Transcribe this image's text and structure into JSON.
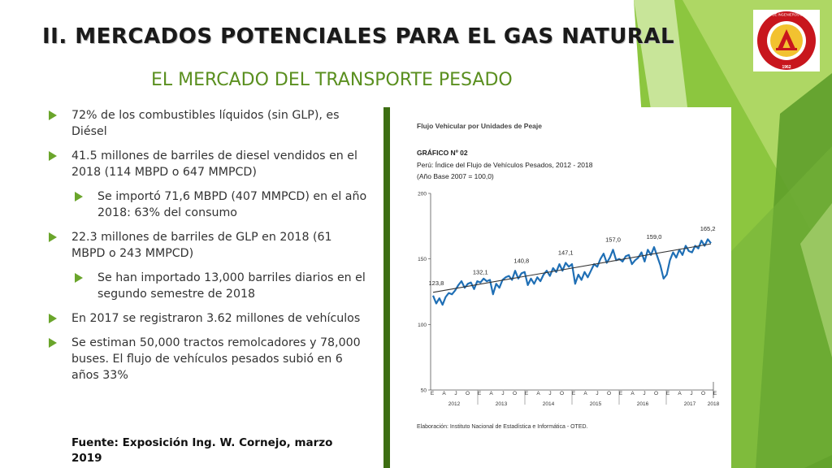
{
  "slide": {
    "title": "II. MERCADOS POTENCIALES PARA EL GAS NATURAL",
    "subtitle": "EL MERCADO DEL TRANSPORTE  PESADO",
    "source": "Fuente: Exposición Ing. W. Cornejo, marzo 2019",
    "accent_color": "#6aa52b",
    "subtitle_color": "#5a8f1f"
  },
  "bullets": [
    {
      "level": 1,
      "text": "72% de los combustibles líquidos (sin GLP), es Diésel"
    },
    {
      "level": 1,
      "text": "41.5 millones de barriles de diesel vendidos en el 2018 (114 MBPD o 647 MMPCD)"
    },
    {
      "level": 2,
      "text": "Se importó 71,6 MBPD (407 MMPCD) en el año 2018: 63% del consumo"
    },
    {
      "level": 1,
      "text": "22.3 millones de barriles de GLP  en 2018 (61 MBPD o 243 MMPCD)"
    },
    {
      "level": 2,
      "text": "Se han importado 13,000 barriles diarios en el segundo semestre de 2018"
    },
    {
      "level": 1,
      "text": "En 2017 se registraron 3.62 millones de vehículos"
    },
    {
      "level": 1,
      "text": "Se estiman 50,000 tractos remolcadores y 78,000 buses. El flujo de vehículos pesados subió en 6 años 33%"
    }
  ],
  "logo": {
    "icon": "colegio-ingenieros-seal-icon",
    "ring_text": "COLEGIO DE INGENIEROS DEL PERU",
    "year_text": "1962"
  },
  "chart_header": {
    "section": "Flujo Vehicular por Unidades de Peaje",
    "number": "GRÁFICO Nº 02",
    "title": "Perú: Índice del Flujo de Vehículos Pesados, 2012 - 2018",
    "base": "(Año Base 2007 = 100,0)",
    "footer": "Elaboración: Instituto Nacional de Estadística e Informática - OTED."
  },
  "chart_data": {
    "type": "line",
    "title": "Perú: Índice del Flujo de Vehículos Pesados, 2012 - 2018",
    "ylim": [
      50,
      200
    ],
    "yticks": [
      "50",
      "100",
      "150",
      "200"
    ],
    "month_labels": [
      "E",
      "A",
      "J",
      "O",
      "E",
      "A",
      "J",
      "O",
      "E",
      "A",
      "J",
      "O",
      "E",
      "A",
      "J",
      "O",
      "E",
      "A",
      "J",
      "O",
      "E",
      "A",
      "J",
      "O",
      "E"
    ],
    "year_labels": [
      "2012",
      "2013",
      "2014",
      "2015",
      "2016",
      "2017",
      "2018"
    ],
    "grid": false,
    "series": [
      {
        "values": [
          122,
          116,
          120,
          115,
          121,
          124,
          123,
          126,
          130,
          133,
          128,
          131,
          132,
          127,
          133,
          132,
          135,
          133,
          134,
          123,
          131,
          128,
          134,
          136,
          137,
          134,
          141,
          135,
          139,
          140,
          130,
          135,
          131,
          136,
          133,
          138,
          141,
          137,
          143,
          140,
          146,
          141,
          147,
          144,
          146,
          131,
          138,
          134,
          140,
          136,
          141,
          146,
          144,
          150,
          154,
          147,
          151,
          157,
          149,
          150,
          148,
          152,
          153,
          146,
          149,
          151,
          155,
          148,
          157,
          153,
          159,
          152,
          145,
          135,
          138,
          149,
          155,
          151,
          157,
          153,
          160,
          156,
          155,
          160,
          158,
          164,
          160,
          165,
          162
        ],
        "color": "#1f6fb5"
      },
      {
        "values": [
          124.5,
          161.5
        ],
        "color": "#333333"
      }
    ],
    "annotations": [
      {
        "label": "123,8",
        "index": 1,
        "value": 123.8
      },
      {
        "label": "132,1",
        "index": 15,
        "value": 132.1
      },
      {
        "label": "140,8",
        "index": 28,
        "value": 140.8
      },
      {
        "label": "147,1",
        "index": 42,
        "value": 147.1
      },
      {
        "label": "157,0",
        "index": 57,
        "value": 157.0
      },
      {
        "label": "159,0",
        "index": 70,
        "value": 159.0
      },
      {
        "label": "165,2",
        "index": 87,
        "value": 165.2
      }
    ]
  }
}
